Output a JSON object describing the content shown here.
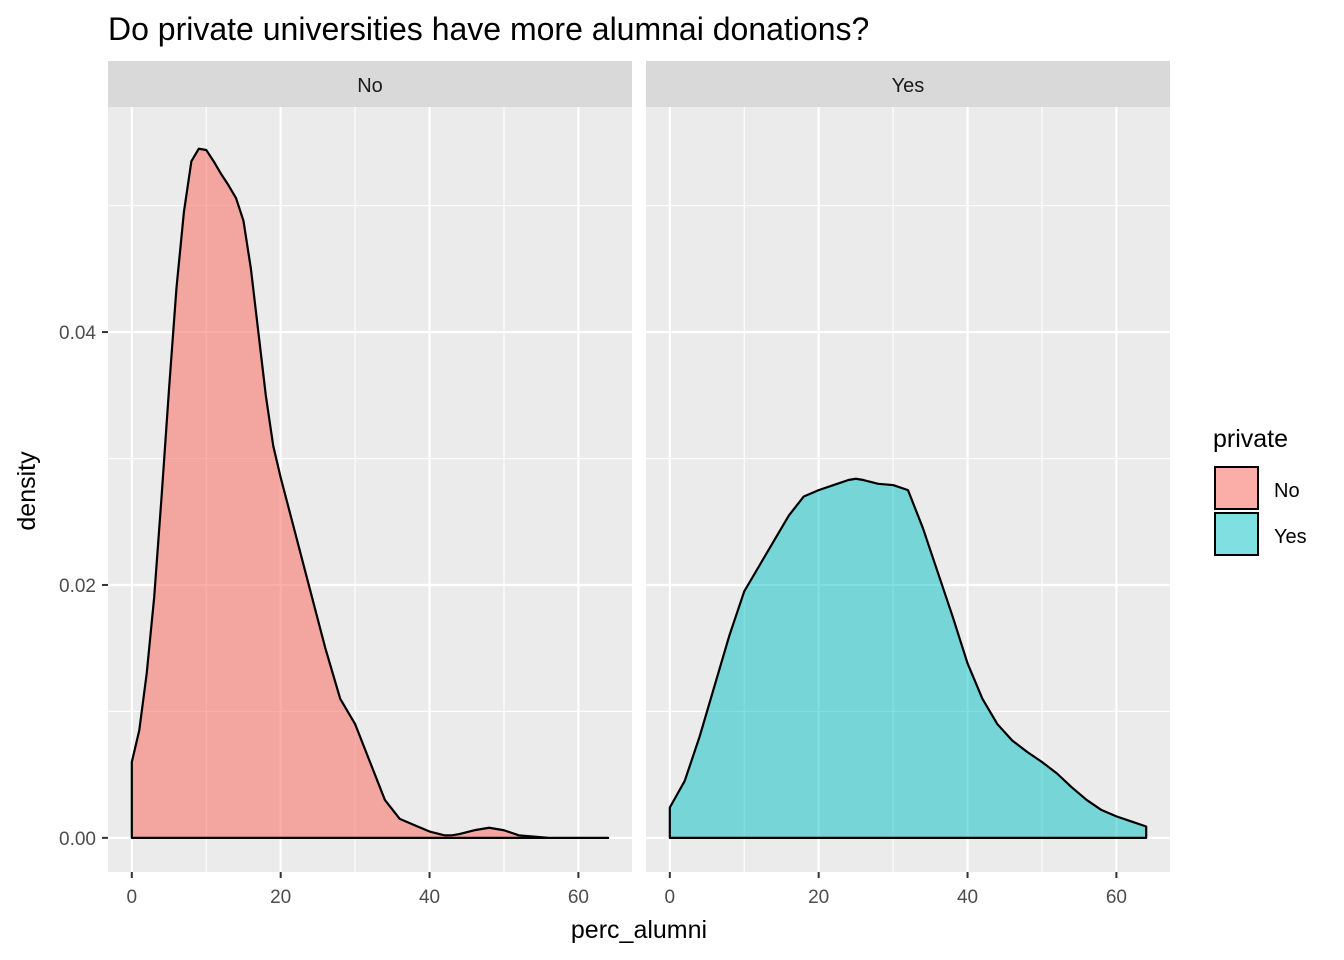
{
  "chart_data": {
    "type": "area",
    "subtype": "faceted density",
    "title": "Do private universities have more alumnai donations?",
    "xlabel": "perc_alumni",
    "ylabel": "density",
    "x_ticks": [
      0,
      20,
      40,
      60
    ],
    "y_ticks": [
      "0.00",
      "0.02",
      "0.04"
    ],
    "xlim": [
      -3.2,
      67.2
    ],
    "ylim": [
      -0.0027,
      0.0578
    ],
    "grid": true,
    "legend": {
      "title": "private",
      "position": "right",
      "entries": [
        {
          "label": "No",
          "color": "#F8766D"
        },
        {
          "label": "Yes",
          "color": "#00BFC4"
        }
      ]
    },
    "panels": [
      {
        "strip": "No",
        "series": "No",
        "color": "#F8766D",
        "x": [
          0,
          1,
          2,
          3,
          4,
          5,
          6,
          7,
          8,
          9,
          10,
          11,
          12,
          13,
          14,
          15,
          16,
          17,
          18,
          19,
          20,
          22,
          24,
          26,
          28,
          30,
          32,
          34,
          36,
          38,
          40,
          42,
          43,
          44,
          46,
          48,
          50,
          52,
          54,
          56,
          60,
          64
        ],
        "y": [
          0.006,
          0.0085,
          0.013,
          0.019,
          0.027,
          0.0355,
          0.0435,
          0.0495,
          0.0535,
          0.0545,
          0.0544,
          0.0535,
          0.0525,
          0.0516,
          0.0506,
          0.0488,
          0.045,
          0.04,
          0.035,
          0.031,
          0.0285,
          0.024,
          0.0195,
          0.015,
          0.011,
          0.009,
          0.006,
          0.003,
          0.0015,
          0.001,
          0.0005,
          0.0002,
          0.0002,
          0.0003,
          0.0006,
          0.0008,
          0.0006,
          0.0002,
          0.0001,
          0.0,
          0.0,
          0.0
        ]
      },
      {
        "strip": "Yes",
        "series": "Yes",
        "color": "#00BFC4",
        "x": [
          0,
          2,
          4,
          6,
          8,
          10,
          12,
          14,
          16,
          18,
          20,
          22,
          24,
          25,
          26,
          28,
          30,
          32,
          34,
          36,
          38,
          40,
          42,
          44,
          46,
          48,
          50,
          52,
          54,
          56,
          58,
          60,
          62,
          64
        ],
        "y": [
          0.0024,
          0.0045,
          0.008,
          0.012,
          0.016,
          0.0195,
          0.0215,
          0.0235,
          0.0255,
          0.027,
          0.0275,
          0.0279,
          0.0283,
          0.0284,
          0.0283,
          0.028,
          0.0279,
          0.0275,
          0.0245,
          0.021,
          0.0175,
          0.0138,
          0.011,
          0.009,
          0.0077,
          0.0068,
          0.006,
          0.0051,
          0.004,
          0.003,
          0.0022,
          0.0017,
          0.0013,
          0.0009
        ]
      }
    ]
  }
}
